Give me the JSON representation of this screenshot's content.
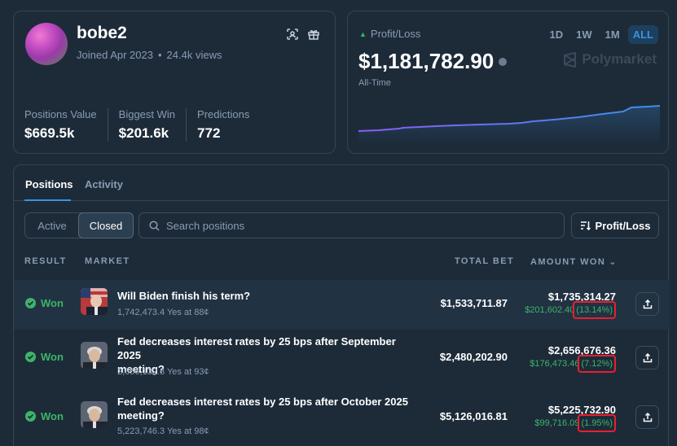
{
  "profile": {
    "username": "bobe2",
    "joined": "Joined Apr 2023",
    "views": "24.4k views",
    "stats": [
      {
        "label": "Positions Value",
        "value": "$669.5k"
      },
      {
        "label": "Biggest Win",
        "value": "$201.6k"
      },
      {
        "label": "Predictions",
        "value": "772"
      }
    ],
    "icons": [
      "scan-icon",
      "gift-icon"
    ]
  },
  "pnl": {
    "label": "Profit/Loss",
    "value": "$1,181,782.90",
    "period": "All-Time",
    "brand": "Polymarket",
    "timeframes": [
      "1D",
      "1W",
      "1M",
      "ALL"
    ],
    "active_timeframe": "ALL",
    "colors": {
      "up": "#3db468",
      "line_start": "#8b5cf6",
      "line_end": "#3a91e6"
    }
  },
  "positions": {
    "tabs": [
      "Positions",
      "Activity"
    ],
    "active_tab": "Positions",
    "filter": {
      "active_label": "Active",
      "closed_label": "Closed",
      "selected": "Closed"
    },
    "search": {
      "placeholder": "Search positions",
      "value": ""
    },
    "sort_label": "Profit/Loss",
    "columns": {
      "result": "RESULT",
      "market": "MARKET",
      "total_bet": "TOTAL BET",
      "amount_won": "AMOUNT WON"
    },
    "rows": [
      {
        "result": "Won",
        "title_line1": "Will Biden finish his term?",
        "title_line2": "",
        "subtitle": "1,742,473.4 Yes at 88¢",
        "total_bet": "$1,533,711.87",
        "amount_won": "$1,735,314.27",
        "gain": "$201,602.40",
        "gain_pct": "(13.14%)"
      },
      {
        "result": "Won",
        "title_line1": "Fed decreases interest rates by 25 bps after September 2025",
        "title_line2": "meeting?",
        "subtitle": "2,656,132.8 Yes at 93¢",
        "total_bet": "$2,480,202.90",
        "amount_won": "$2,656,676.36",
        "gain": "$176,473.46",
        "gain_pct": "(7.12%)"
      },
      {
        "result": "Won",
        "title_line1": "Fed decreases interest rates by 25 bps after October 2025",
        "title_line2": "meeting?",
        "subtitle": "5,223,746.3 Yes at 98¢",
        "total_bet": "$5,126,016.81",
        "amount_won": "$5,225,732.90",
        "gain": "$99,716.09",
        "gain_pct": "(1.95%)"
      }
    ]
  }
}
